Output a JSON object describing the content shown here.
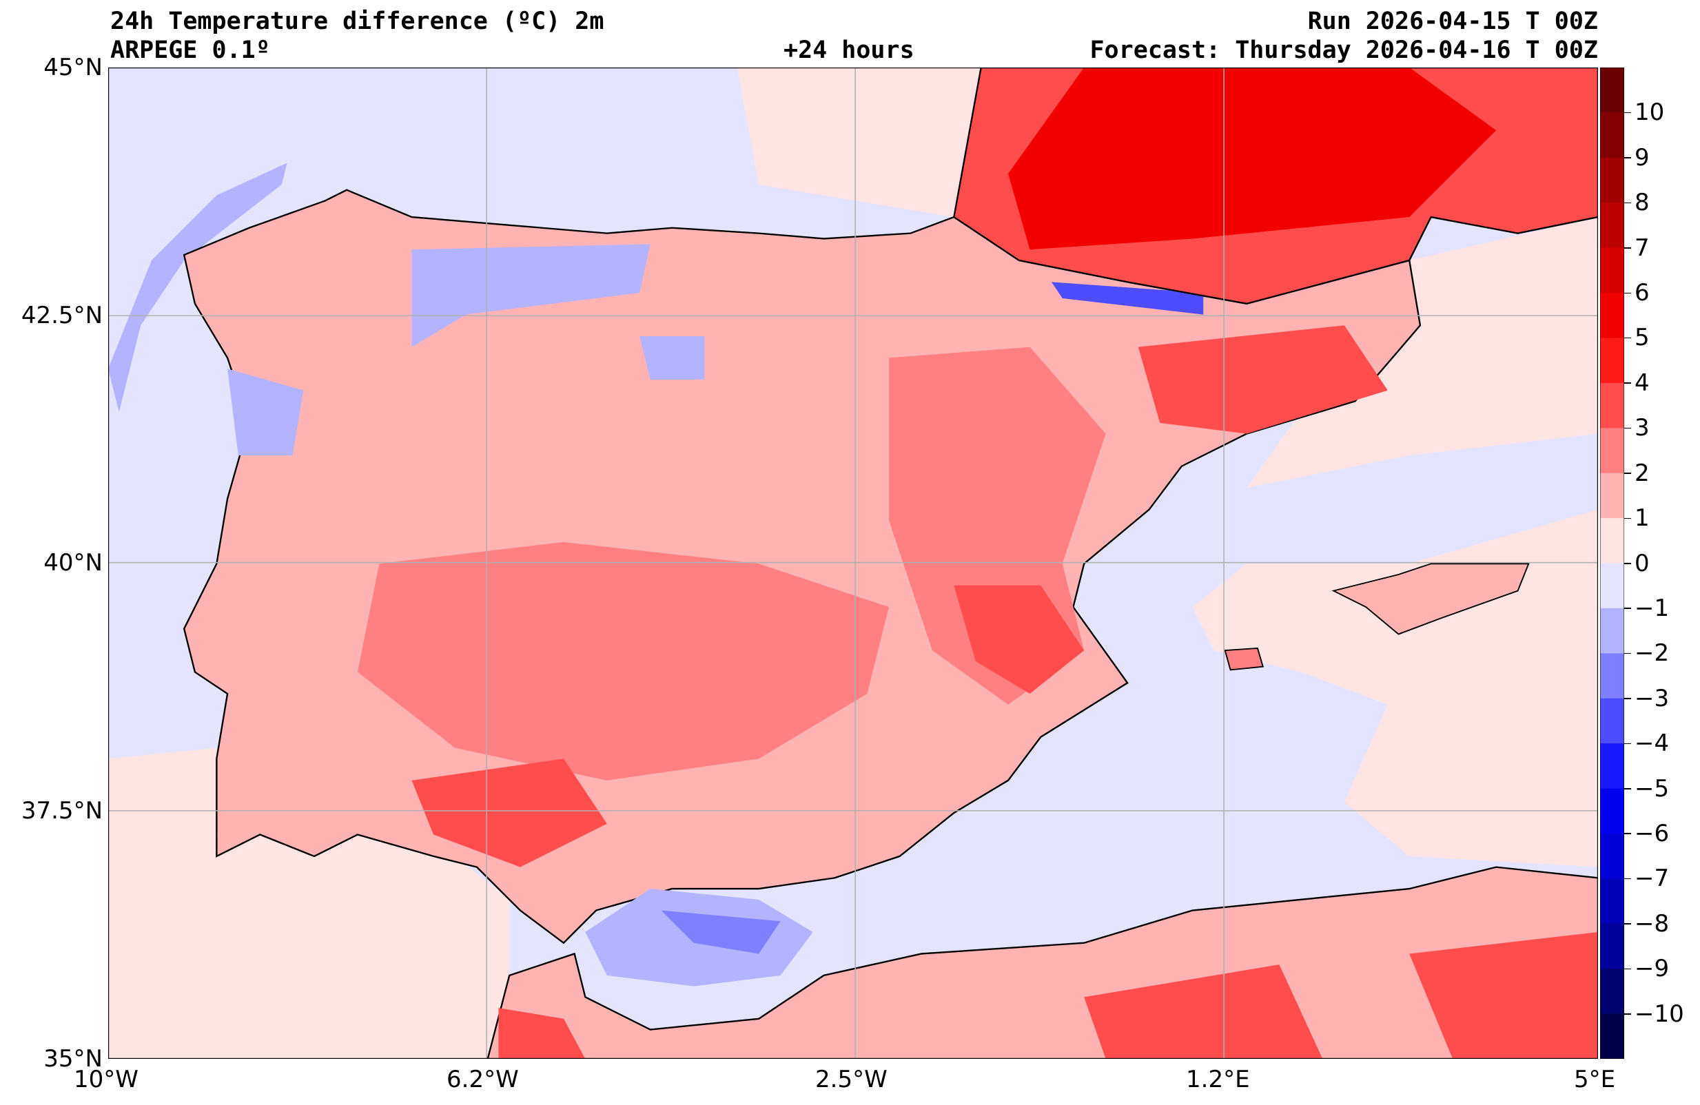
{
  "header": {
    "title": "24h Temperature difference (ºC) 2m",
    "model": "ARPEGE 0.1º",
    "lead": "+24 hours",
    "run": "Run 2026-04-15 T 00Z",
    "forecast": "Forecast: Thursday 2026-04-16 T 00Z"
  },
  "axes": {
    "lat_labels": [
      "45°N",
      "42.5°N",
      "40°N",
      "37.5°N",
      "35°N"
    ],
    "lat_values": [
      45,
      42.5,
      40,
      37.5,
      35
    ],
    "lon_labels": [
      "10°W",
      "6.2°W",
      "2.5°W",
      "1.2°E",
      "5°E"
    ],
    "lon_values": [
      -10,
      -6.25,
      -2.5,
      1.25,
      5
    ]
  },
  "colorbar": {
    "ticks": [
      "10",
      "9",
      "8",
      "7",
      "6",
      "5",
      "4",
      "3",
      "2",
      "1",
      "0",
      "−1",
      "−2",
      "−3",
      "−4",
      "−5",
      "−6",
      "−7",
      "−8",
      "−9",
      "−10"
    ],
    "tick_values": [
      10,
      9,
      8,
      7,
      6,
      5,
      4,
      3,
      2,
      1,
      0,
      -1,
      -2,
      -3,
      -4,
      -5,
      -6,
      -7,
      -8,
      -9,
      -10
    ],
    "range": [
      -11,
      11
    ],
    "colors": [
      "#6a0000",
      "#820000",
      "#a00000",
      "#bb0000",
      "#d70000",
      "#f20000",
      "#ff1a1a",
      "#ff4d4d",
      "#ff8080",
      "#ffb3b3",
      "#ffe4e4",
      "#e4e4ff",
      "#b3b3ff",
      "#8080ff",
      "#4d4dff",
      "#1a1aff",
      "#0000f0",
      "#0000d6",
      "#0000b8",
      "#00009a",
      "#00006e",
      "#000048"
    ]
  }
}
